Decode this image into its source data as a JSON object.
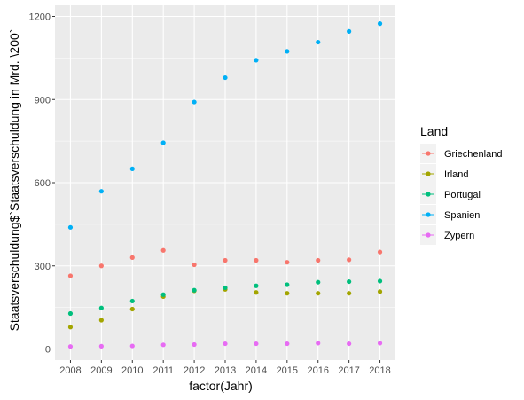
{
  "chart_data": {
    "type": "scatter",
    "xlabel": "factor(Jahr)",
    "ylabel": "Staatsverschuldung$`Staatsverschuldung in Mrd. \\200`",
    "ylim": [
      -40,
      1240
    ],
    "y_ticks": [
      0,
      300,
      600,
      900,
      1200
    ],
    "categories": [
      "2008",
      "2009",
      "2010",
      "2011",
      "2012",
      "2013",
      "2014",
      "2015",
      "2016",
      "2017",
      "2018"
    ],
    "legend": {
      "title": "Land",
      "placement": "right"
    },
    "grid": true,
    "series": [
      {
        "name": "Griechenland",
        "color": "#F8766D",
        "values": [
          264,
          300,
          330,
          356,
          304,
          320,
          320,
          313,
          320,
          322,
          350
        ]
      },
      {
        "name": "Irland",
        "color": "#A3A500",
        "values": [
          79,
          104,
          144,
          189,
          210,
          215,
          204,
          201,
          201,
          201,
          207
        ]
      },
      {
        "name": "Portugal",
        "color": "#00BF7D",
        "values": [
          128,
          148,
          173,
          196,
          212,
          221,
          228,
          232,
          241,
          243,
          245
        ]
      },
      {
        "name": "Spanien",
        "color": "#00B0F6",
        "values": [
          439,
          569,
          650,
          744,
          891,
          979,
          1042,
          1074,
          1107,
          1146,
          1174
        ]
      },
      {
        "name": "Zypern",
        "color": "#E76BF3",
        "values": [
          9,
          10,
          11,
          15,
          16,
          19,
          19,
          19,
          21,
          19,
          21
        ]
      }
    ]
  }
}
